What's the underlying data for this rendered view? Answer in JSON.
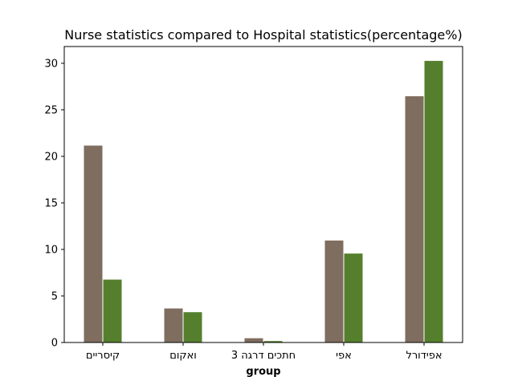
{
  "chart_data": {
    "type": "bar",
    "title": "Nurse statistics compared to Hospital statistics(percentage%)",
    "xlabel": "group",
    "ylabel": "",
    "categories": [
      "קיסריים",
      "ואקום",
      "חתכים דרגה 3",
      "אפי",
      "אפידורל"
    ],
    "series": [
      {
        "values": [
          21.2,
          3.7,
          0.5,
          11.0,
          26.5
        ],
        "color": "#7f6d5f"
      },
      {
        "values": [
          6.8,
          3.3,
          0.2,
          9.6,
          30.3
        ],
        "color": "#557f2d"
      }
    ],
    "ylim": [
      0,
      31.8
    ],
    "yticks": [
      0,
      5,
      10,
      15,
      20,
      25,
      30
    ],
    "grid": false,
    "legend": "none"
  }
}
